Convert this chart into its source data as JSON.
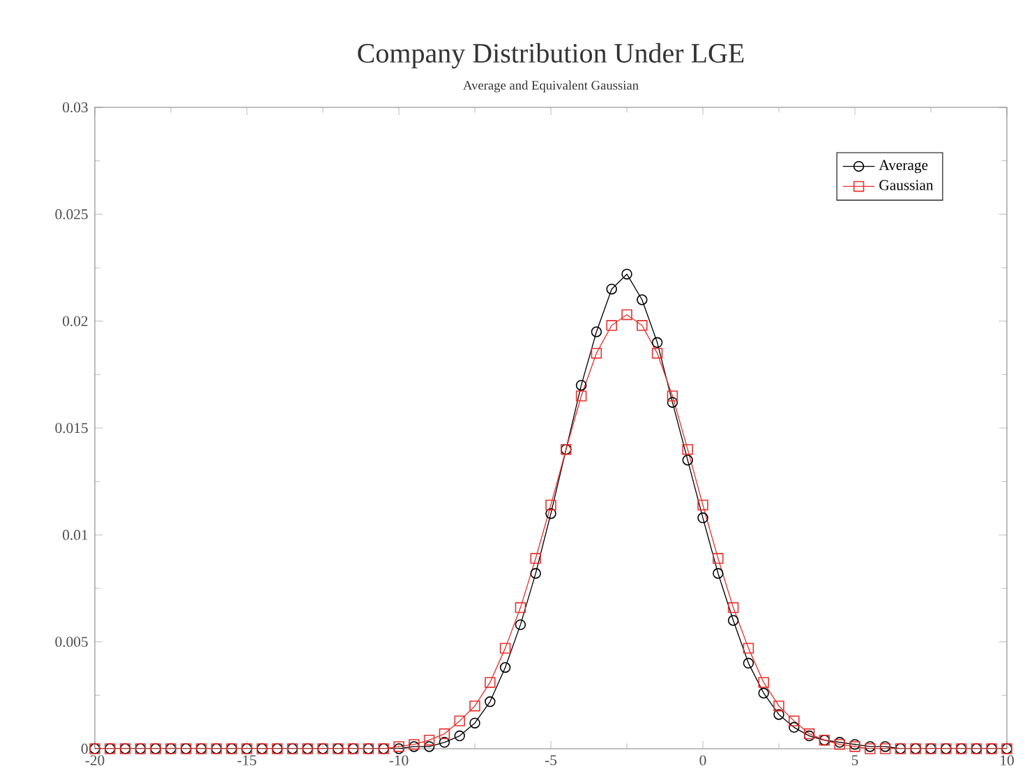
{
  "chart_data": {
    "type": "line",
    "title": "Company Distribution Under LGE",
    "subtitle": "Average and Equivalent Gaussian",
    "x": [
      -20,
      -19.5,
      -19,
      -18.5,
      -18,
      -17.5,
      -17,
      -16.5,
      -16,
      -15.5,
      -15,
      -14.5,
      -14,
      -13.5,
      -13,
      -12.5,
      -12,
      -11.5,
      -11,
      -10.5,
      -10,
      -9.5,
      -9,
      -8.5,
      -8,
      -7.5,
      -7,
      -6.5,
      -6,
      -5.5,
      -5,
      -4.5,
      -4,
      -3.5,
      -3,
      -2.5,
      -2,
      -1.5,
      -1,
      -0.5,
      0,
      0.5,
      1,
      1.5,
      2,
      2.5,
      3,
      3.5,
      4,
      4.5,
      5,
      5.5,
      6,
      6.5,
      7,
      7.5,
      8,
      8.5,
      9,
      9.5,
      10
    ],
    "series": [
      {
        "name": "Average",
        "color": "#000000",
        "marker": "circle",
        "line_style": "solid",
        "values": [
          0,
          0,
          0,
          0,
          0,
          0,
          0,
          0,
          0,
          0,
          0,
          0,
          0,
          0,
          0,
          0,
          0,
          0,
          0,
          0,
          0,
          0.0001,
          0.0001,
          0.0003,
          0.0006,
          0.0012,
          0.0022,
          0.0038,
          0.0058,
          0.0082,
          0.011,
          0.014,
          0.017,
          0.0195,
          0.0215,
          0.0222,
          0.021,
          0.019,
          0.0162,
          0.0135,
          0.0108,
          0.0082,
          0.006,
          0.004,
          0.0026,
          0.0016,
          0.001,
          0.0006,
          0.0004,
          0.0003,
          0.0002,
          0.0001,
          0.0001,
          0,
          0,
          0,
          0,
          0,
          0,
          0,
          0
        ]
      },
      {
        "name": "Gaussian",
        "color": "#e8302c",
        "marker": "square",
        "line_style": "solid",
        "values": [
          0,
          0,
          0,
          0,
          0,
          0,
          0,
          0,
          0,
          0,
          0,
          0,
          0,
          0,
          0,
          0,
          0,
          0,
          0,
          0,
          0.0001,
          0.0002,
          0.0004,
          0.0007,
          0.0013,
          0.002,
          0.0031,
          0.0047,
          0.0066,
          0.0089,
          0.0114,
          0.014,
          0.0165,
          0.0185,
          0.0198,
          0.0203,
          0.0198,
          0.0185,
          0.0165,
          0.014,
          0.0114,
          0.0089,
          0.0066,
          0.0047,
          0.0031,
          0.002,
          0.0013,
          0.0007,
          0.0004,
          0.0002,
          0.0001,
          0,
          0,
          0,
          0,
          0,
          0,
          0,
          0,
          0,
          0
        ]
      }
    ],
    "xlim": [
      -20,
      10
    ],
    "xticks": [
      -20,
      -15,
      -10,
      -5,
      0,
      5,
      10
    ],
    "ylim": [
      0,
      0.03
    ],
    "yticks": [
      0,
      0.005,
      0.01,
      0.015,
      0.02,
      0.025,
      0.03
    ],
    "grid": false,
    "legend": "top right"
  }
}
